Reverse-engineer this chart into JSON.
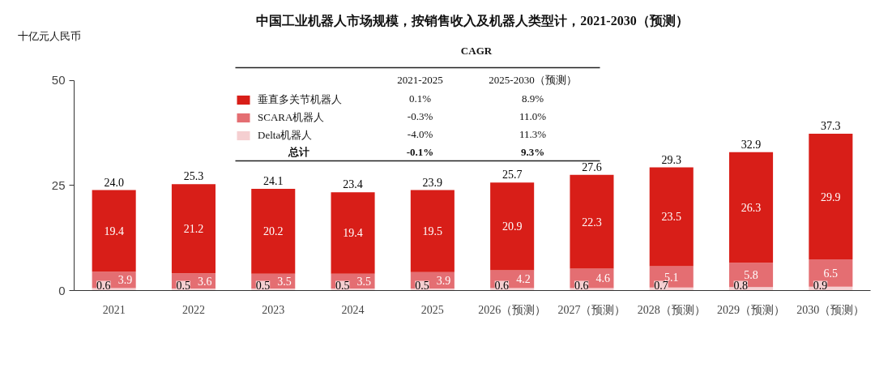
{
  "chart_data": {
    "type": "bar",
    "title": "中国工业机器人市场规模，按销售收入及机器人类型计，2021-2030（预测）",
    "ylabel": "十亿元人民币",
    "categories": [
      "2021",
      "2022",
      "2023",
      "2024",
      "2025",
      "2026（预测）",
      "2027（预测）",
      "2028（预测）",
      "2029（预测）",
      "2030（预测）"
    ],
    "series": [
      {
        "name": "Delta机器人",
        "color": "#f5cfd1",
        "values": [
          0.6,
          0.5,
          0.5,
          0.5,
          0.5,
          0.6,
          0.6,
          0.7,
          0.8,
          0.9
        ]
      },
      {
        "name": "SCARA机器人",
        "color": "#e46e72",
        "values": [
          3.9,
          3.6,
          3.5,
          3.5,
          3.9,
          4.2,
          4.6,
          5.1,
          5.8,
          6.5
        ]
      },
      {
        "name": "垂直多关节机器人",
        "color": "#d81e18",
        "values": [
          19.4,
          21.2,
          20.2,
          19.4,
          19.5,
          20.9,
          22.3,
          23.5,
          26.3,
          29.9
        ]
      }
    ],
    "stacked": true,
    "ylim": [
      0,
      50
    ],
    "yticks": [
      0,
      25,
      50
    ],
    "data_labels": true,
    "totals": [
      "24.0",
      "25.3",
      "24.1",
      "23.4",
      "23.9",
      "25.7",
      "27.6",
      "29.3",
      "32.9",
      "37.3"
    ],
    "legend": "top",
    "annotations": [
      "CAGR",
      "2021-2025",
      "2025-2030（预测）",
      "0.1%",
      "8.9%",
      "-0.3%",
      "11.0%",
      "-4.0%",
      "11.3%",
      "总计",
      "-0.1%",
      "9.3%"
    ]
  }
}
